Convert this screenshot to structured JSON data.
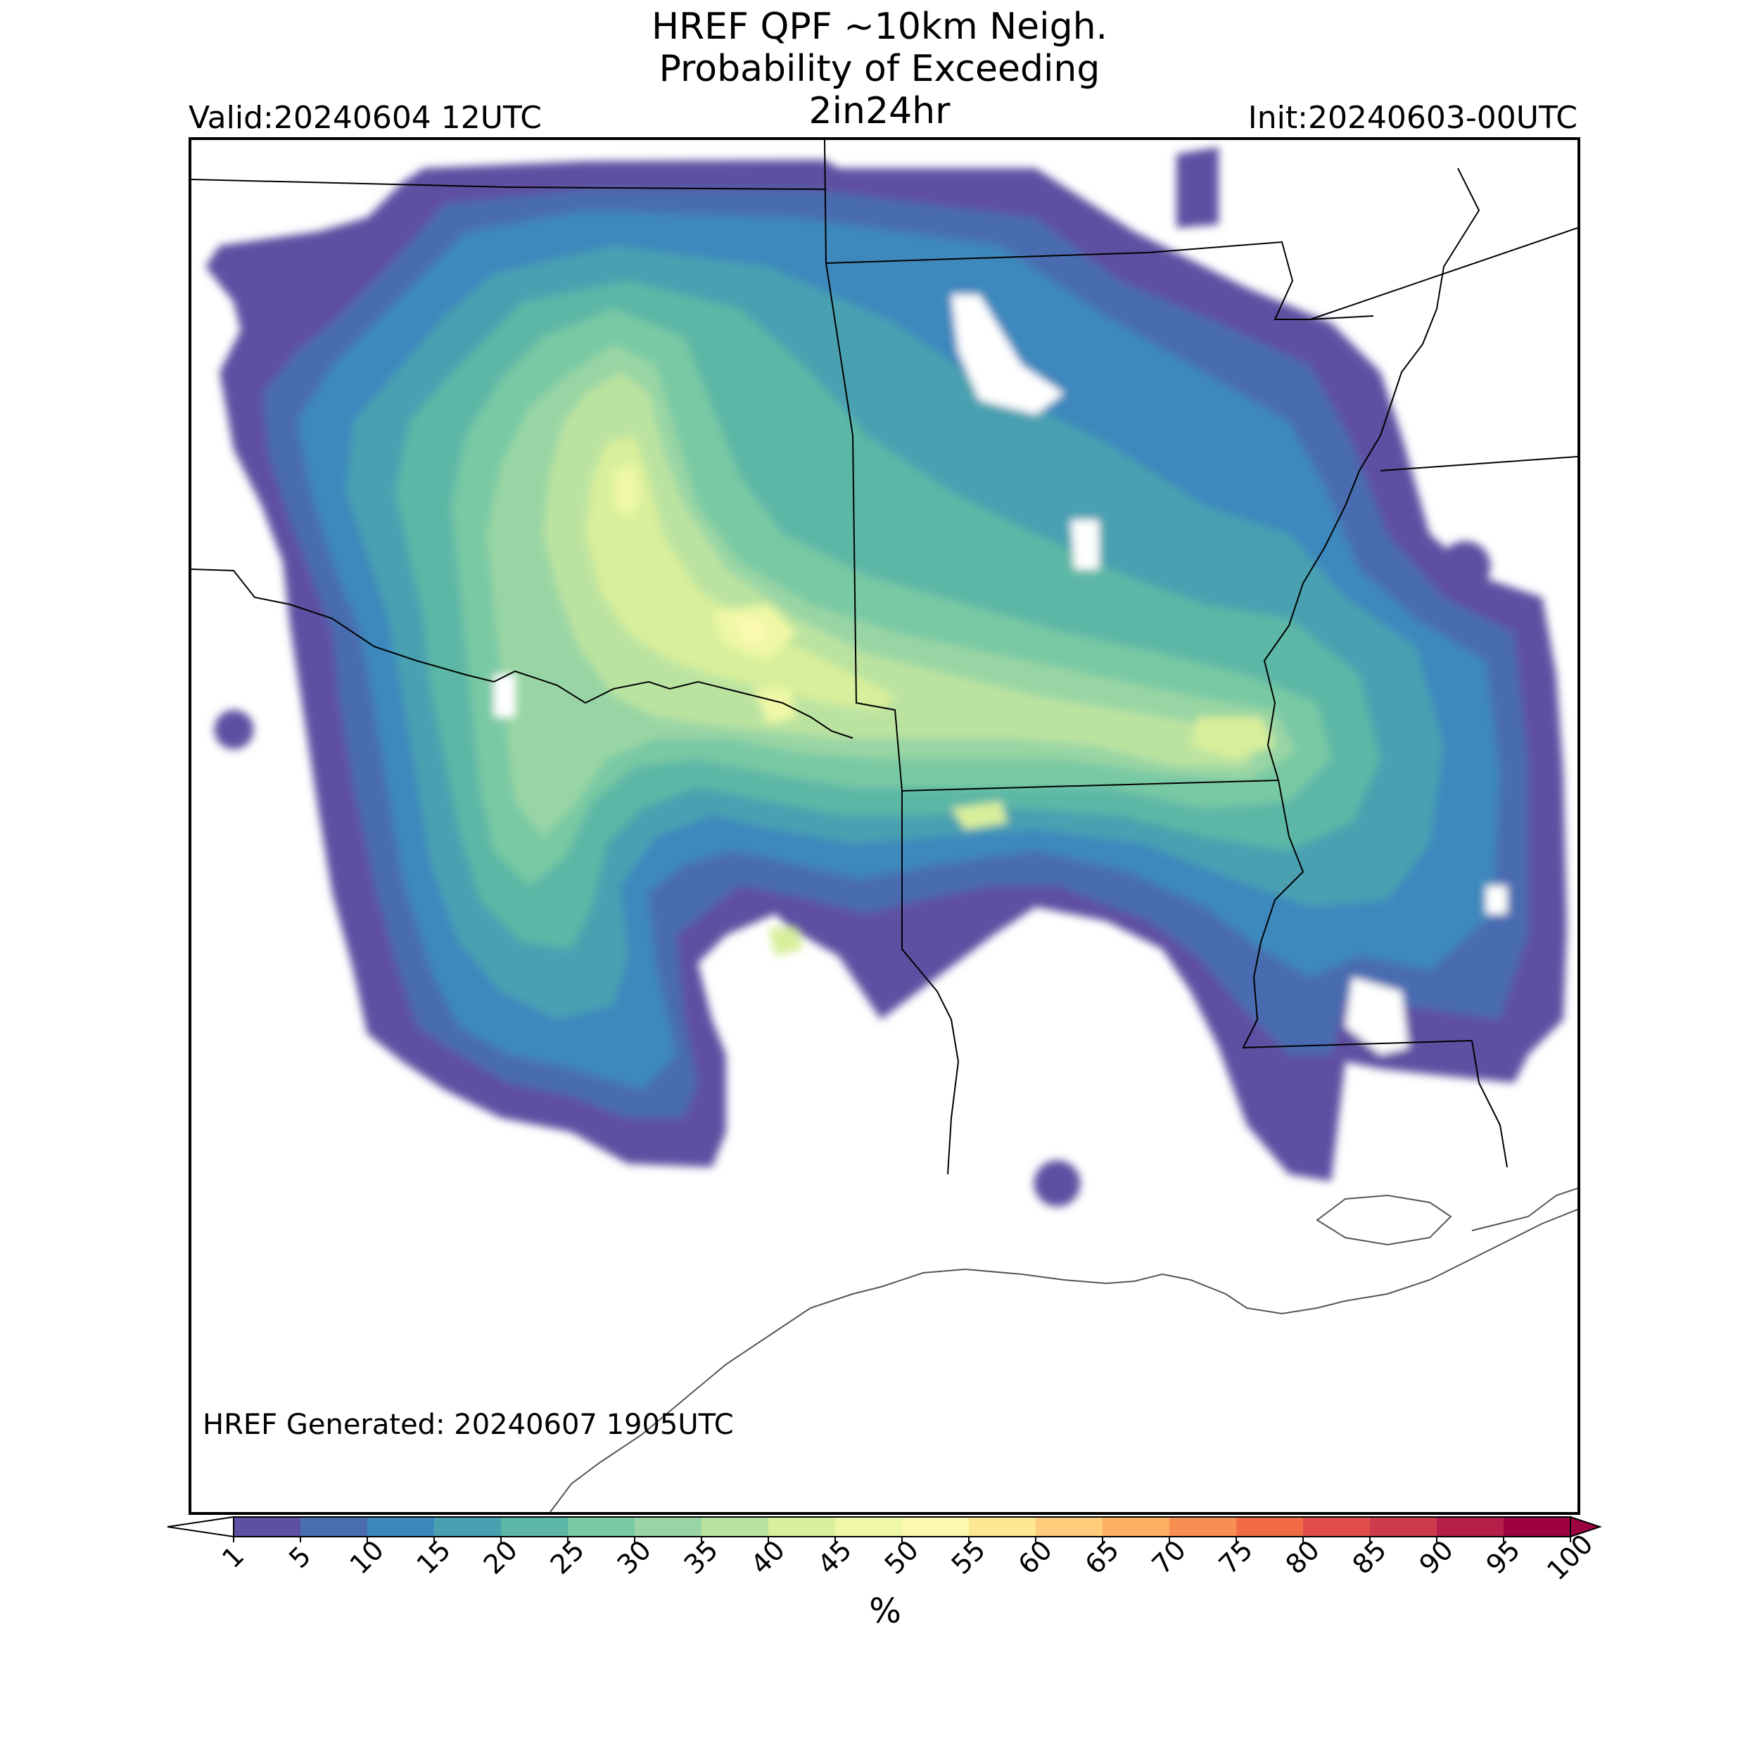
{
  "header": {
    "title_line1": "HREF QPF ~10km Neigh.",
    "title_line2": "Probability of Exceeding",
    "title_line3": "2in24hr",
    "valid": "Valid:20240604 12UTC",
    "init": "Init:20240603-00UTC"
  },
  "footer": {
    "generated": "HREF Generated: 20240607 1905UTC"
  },
  "colorbar": {
    "unit": "%",
    "levels": [
      "1",
      "5",
      "10",
      "15",
      "20",
      "25",
      "30",
      "35",
      "40",
      "45",
      "50",
      "55",
      "60",
      "65",
      "70",
      "75",
      "80",
      "85",
      "90",
      "95",
      "100"
    ],
    "colors": [
      "#5e4fa2",
      "#4a6cb0",
      "#3c88bd",
      "#4aa0b1",
      "#5db7a6",
      "#79c9a4",
      "#99d5a4",
      "#bbe3a0",
      "#d8ef9b",
      "#eef8a6",
      "#fbf9b0",
      "#fee792",
      "#fdcd7b",
      "#fdaf62",
      "#f98e52",
      "#f16c44",
      "#e04d4a",
      "#cc3a4d",
      "#b31f48",
      "#9e0142"
    ],
    "extend": "both"
  },
  "map": {
    "region": "Southern Plains / Lower Mississippi Valley",
    "field": "neighborhood probability of QPF exceeding 2 in in 24 hr",
    "max_probability_percent": 55
  }
}
